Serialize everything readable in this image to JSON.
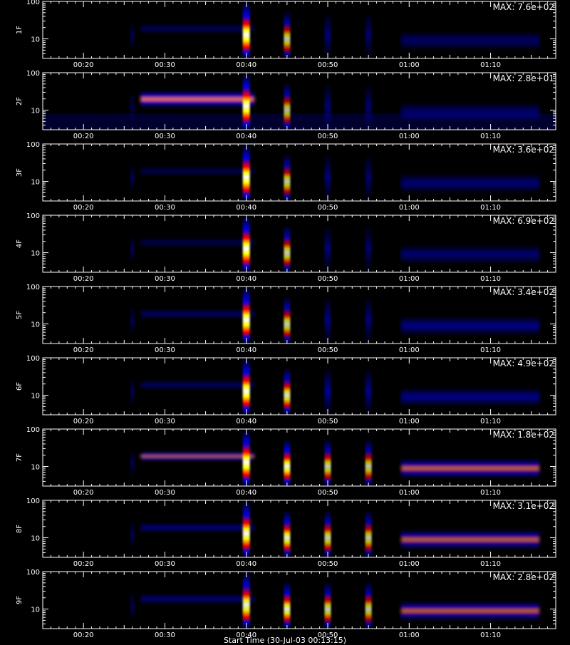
{
  "chart_data": {
    "type": "heatmap",
    "time_range": [
      "00:15",
      "01:18"
    ],
    "freq_axis": {
      "scale": "log",
      "min": 3,
      "max": 100,
      "tick_labels": [
        "10",
        "100"
      ]
    },
    "x_tick_labels": [
      "00:20",
      "00:30",
      "00:40",
      "00:50",
      "01:00",
      "01:10"
    ],
    "x_axis_title": "Start Time (30-Jul-03 00:13:15)",
    "colormap": [
      "#000000",
      "#000066",
      "#0000ff",
      "#ff0000",
      "#ffff00",
      "#ffffff"
    ],
    "panels": [
      {
        "label": "1F",
        "max_label": "MAX: 7.6e+02",
        "weights": {
          "bg": 0.0,
          "band": 0.35,
          "ch40": 1.0,
          "ch45": 0.6,
          "ch50": 0.35,
          "ch55": 0.3,
          "late": 0.22
        }
      },
      {
        "label": "2F",
        "max_label": "MAX: 2.8e+01",
        "weights": {
          "bg": 0.15,
          "band": 0.95,
          "ch40": 1.0,
          "ch45": 0.55,
          "ch50": 0.35,
          "ch55": 0.3,
          "late": 0.25
        }
      },
      {
        "label": "3F",
        "max_label": "MAX: 3.6e+02",
        "weights": {
          "bg": 0.0,
          "band": 0.3,
          "ch40": 0.85,
          "ch45": 0.6,
          "ch50": 0.35,
          "ch55": 0.3,
          "late": 0.3
        }
      },
      {
        "label": "4F",
        "max_label": "MAX: 6.9e+02",
        "weights": {
          "bg": 0.0,
          "band": 0.3,
          "ch40": 0.9,
          "ch45": 0.62,
          "ch50": 0.35,
          "ch55": 0.3,
          "late": 0.28
        }
      },
      {
        "label": "5F",
        "max_label": "MAX: 3.4e+02",
        "weights": {
          "bg": 0.0,
          "band": 0.4,
          "ch40": 0.85,
          "ch45": 0.62,
          "ch50": 0.4,
          "ch55": 0.35,
          "late": 0.38
        }
      },
      {
        "label": "6F",
        "max_label": "MAX: 4.9e+02",
        "weights": {
          "bg": 0.0,
          "band": 0.38,
          "ch40": 0.9,
          "ch45": 0.7,
          "ch50": 0.5,
          "ch55": 0.45,
          "late": 0.38
        }
      },
      {
        "label": "7F",
        "max_label": "MAX: 1.8e+02",
        "weights": {
          "bg": 0.0,
          "band": 0.72,
          "ch40": 1.0,
          "ch45": 0.8,
          "ch50": 0.62,
          "ch55": 0.58,
          "late": 0.55
        }
      },
      {
        "label": "8F",
        "max_label": "MAX: 3.1e+02",
        "weights": {
          "bg": 0.0,
          "band": 0.52,
          "ch40": 0.82,
          "ch45": 0.75,
          "ch50": 0.62,
          "ch55": 0.58,
          "late": 0.52
        }
      },
      {
        "label": "9F",
        "max_label": "MAX: 2.8e+02",
        "weights": {
          "bg": 0.0,
          "band": 0.52,
          "ch40": 0.78,
          "ch45": 0.75,
          "ch50": 0.62,
          "ch55": 0.58,
          "late": 0.52
        }
      }
    ]
  }
}
